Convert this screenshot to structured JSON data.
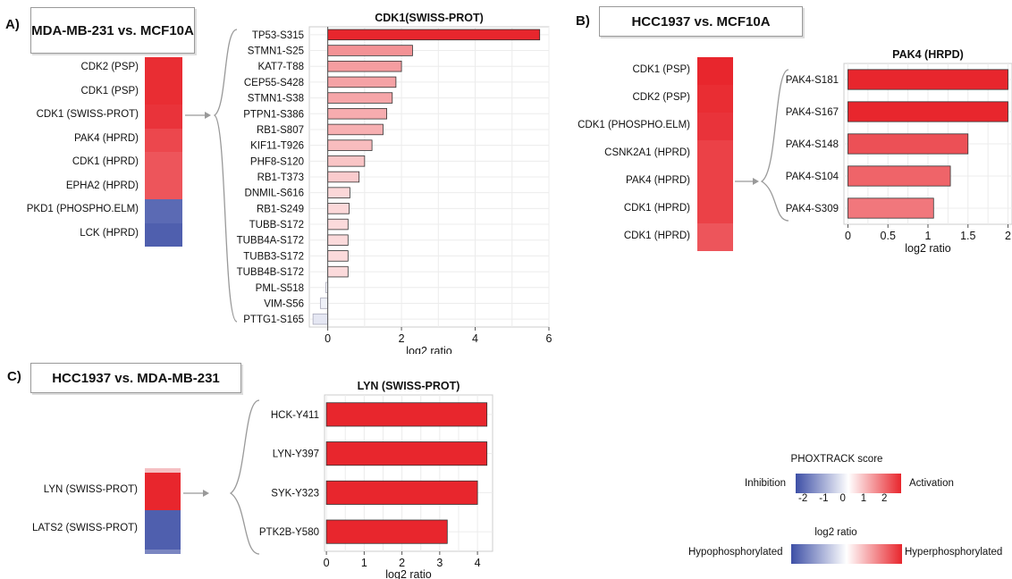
{
  "colors": {
    "activation": "#e8262d",
    "inhibition": "#3d4fa6",
    "neutral": "#ffffff"
  },
  "panels": [
    {
      "letter": "A)",
      "title": "MDA-MB-231 vs. MCF10A",
      "heatmap": [
        {
          "label": "CDK2 (PSP)",
          "score": 2.4
        },
        {
          "label": "CDK1 (PSP)",
          "score": 2.4
        },
        {
          "label": "CDK1 (SWISS-PROT)",
          "score": 2.3
        },
        {
          "label": "PAK4 (HPRD)",
          "score": 2.0
        },
        {
          "label": "CDK1 (HPRD)",
          "score": 1.8
        },
        {
          "label": "EPHA2 (HPRD)",
          "score": 1.8
        },
        {
          "label": "PKD1 (PHOSPHO.ELM)",
          "score": -2.0
        },
        {
          "label": "LCK (HPRD)",
          "score": -2.2
        }
      ]
    },
    {
      "letter": "B)",
      "title": "HCC1937 vs. MCF10A",
      "heatmap": [
        {
          "label": "CDK1 (PSP)",
          "score": 2.5
        },
        {
          "label": "CDK2 (PSP)",
          "score": 2.4
        },
        {
          "label": "CDK1 (PHOSPHO.ELM)",
          "score": 2.3
        },
        {
          "label": "CSNK2A1 (HPRD)",
          "score": 2.1
        },
        {
          "label": "PAK4 (HPRD)",
          "score": 2.1
        },
        {
          "label": "CDK1 (HPRD)",
          "score": 2.1
        },
        {
          "label": "CDK1 (HPRD)",
          "score": 1.8
        }
      ]
    },
    {
      "letter": "C)",
      "title": "HCC1937 vs. MDA-MB-231",
      "heatmap": [
        {
          "label": "LYN (SWISS-PROT)",
          "score": 2.5
        },
        {
          "label": "LATS2 (SWISS-PROT)",
          "score": -2.2
        }
      ]
    }
  ],
  "chart_data": [
    {
      "type": "bar",
      "orientation": "horizontal",
      "title": "CDK1(SWISS-PROT)",
      "xlabel": "log2 ratio",
      "xlim": [
        -0.5,
        6
      ],
      "xticks": [
        0,
        2,
        4,
        6
      ],
      "grid": true,
      "categories": [
        "TP53-S315",
        "STMN1-S25",
        "KAT7-T88",
        "CEP55-S428",
        "STMN1-S38",
        "PTPN1-S386",
        "RB1-S807",
        "KIF11-T926",
        "PHF8-S120",
        "RB1-T373",
        "DNMIL-S616",
        "RB1-S249",
        "TUBB-S172",
        "TUBB4A-S172",
        "TUBB3-S172",
        "TUBB4B-S172",
        "PML-S518",
        "VIM-S56",
        "PTTG1-S165"
      ],
      "values": [
        5.75,
        2.3,
        2.0,
        1.85,
        1.75,
        1.6,
        1.5,
        1.2,
        1.0,
        0.85,
        0.6,
        0.58,
        0.55,
        0.55,
        0.55,
        0.55,
        -0.05,
        -0.2,
        -0.4
      ]
    },
    {
      "type": "bar",
      "orientation": "horizontal",
      "title": "PAK4 (HRPD)",
      "xlabel": "log2 ratio",
      "xlim": [
        -0.05,
        2.05
      ],
      "xticks": [
        0,
        0.5,
        1,
        1.5,
        2
      ],
      "grid": true,
      "categories": [
        "PAK4-S181",
        "PAK4-S167",
        "PAK4-S148",
        "PAK4-S104",
        "PAK4-S309"
      ],
      "values": [
        2.0,
        2.0,
        1.5,
        1.28,
        1.07
      ]
    },
    {
      "type": "bar",
      "orientation": "horizontal",
      "title": "LYN (SWISS-PROT)",
      "xlabel": "log2 ratio",
      "xlim": [
        -0.05,
        4.4
      ],
      "xticks": [
        0,
        1,
        2,
        3,
        4
      ],
      "grid": true,
      "categories": [
        "HCK-Y411",
        "LYN-Y397",
        "SYK-Y323",
        "PTK2B-Y580"
      ],
      "values": [
        4.25,
        4.25,
        4.0,
        3.2
      ]
    }
  ],
  "legend": {
    "score_title": "PHOXTRACK score",
    "score_left": "Inhibition",
    "score_right": "Activation",
    "score_ticks": [
      "-2",
      "-1",
      "0",
      "1",
      "2"
    ],
    "ratio_title": "log2 ratio",
    "ratio_left": "Hypophosphorylated",
    "ratio_right": "Hyperphosphorylated"
  }
}
